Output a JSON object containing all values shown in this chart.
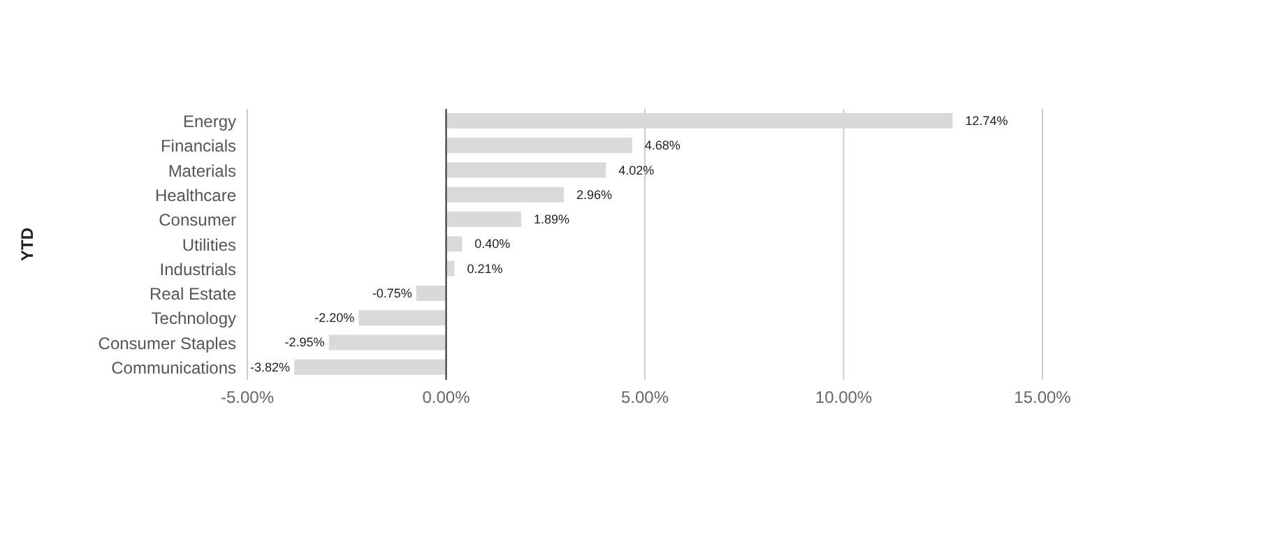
{
  "chart_data": {
    "type": "bar",
    "orientation": "horizontal",
    "ylabel": "YTD",
    "categories": [
      "Energy",
      "Financials",
      "Materials",
      "Healthcare",
      "Consumer",
      "Utilities",
      "Industrials",
      "Real Estate",
      "Technology",
      "Consumer Staples",
      "Communications"
    ],
    "values": [
      12.74,
      4.68,
      4.02,
      2.96,
      1.89,
      0.4,
      0.21,
      -0.75,
      -2.2,
      -2.95,
      -3.82
    ],
    "value_labels": [
      "12.74%",
      "4.68%",
      "4.02%",
      "2.96%",
      "1.89%",
      "0.40%",
      "0.21%",
      "-0.75%",
      "-2.20%",
      "-2.95%",
      "-3.82%"
    ],
    "color": "#d9d9d9",
    "xlim": [
      -5,
      15
    ],
    "xticks": [
      {
        "value": -5,
        "label": "-5.00%"
      },
      {
        "value": 0,
        "label": "0.00%"
      },
      {
        "value": 5,
        "label": "5.00%"
      },
      {
        "value": 10,
        "label": "10.00%"
      },
      {
        "value": 15,
        "label": "15.00%"
      }
    ],
    "grid": "x",
    "ref_lines": [
      {
        "axis": "x",
        "value": 0,
        "color": "#333333"
      }
    ]
  }
}
